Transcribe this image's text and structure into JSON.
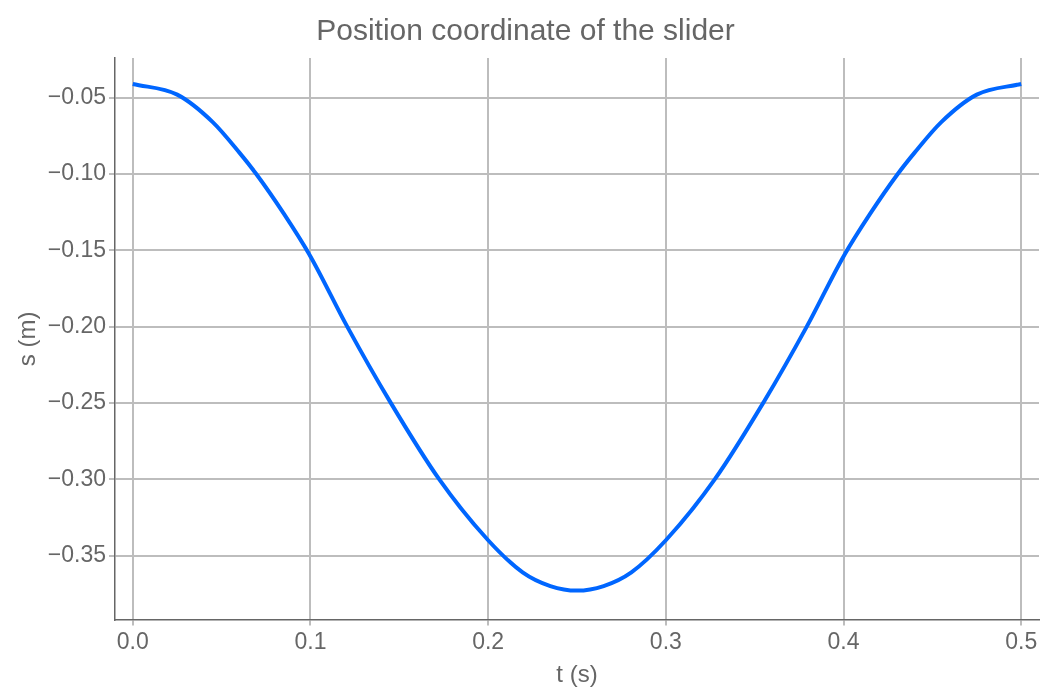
{
  "chart_data": {
    "type": "line",
    "title": "Position coordinate of the slider",
    "xlabel": "t (s)",
    "ylabel": "s (m)",
    "xlim": [
      -0.01,
      0.51
    ],
    "ylim": [
      -0.392,
      -0.024
    ],
    "xticks": [
      {
        "value": 0,
        "label": "0.0"
      },
      0.1,
      0.2,
      0.3,
      0.4,
      0.5
    ],
    "yticks": [
      {
        "value": -0.35,
        "label": "−0.35"
      },
      {
        "value": -0.3,
        "label": "−0.30"
      },
      {
        "value": -0.25,
        "label": "−0.25"
      },
      {
        "value": -0.2,
        "label": "−0.20"
      },
      {
        "value": -0.15,
        "label": "−0.15"
      },
      {
        "value": -0.1,
        "label": "−0.10"
      },
      {
        "value": -0.05,
        "label": "−0.05"
      }
    ],
    "grid": true,
    "marker": "none",
    "line_style": "solid",
    "series": [
      {
        "color": "#0066ff",
        "x": [
          0,
          0.025,
          0.045,
          0.06,
          0.0695,
          0.085,
          0.1,
          0.1207,
          0.1452,
          0.1724,
          0.2,
          0.2194,
          0.235,
          0.25,
          0.265,
          0.2806,
          0.3,
          0.3276,
          0.3548,
          0.3793,
          0.4,
          0.415,
          0.4305,
          0.44,
          0.455,
          0.475,
          0.5
        ],
        "values": [
          -0.041,
          -0.048,
          -0.066,
          -0.086,
          -0.1,
          -0.126,
          -0.154,
          -0.2,
          -0.25,
          -0.3,
          -0.34,
          -0.361,
          -0.37,
          -0.373,
          -0.37,
          -0.361,
          -0.34,
          -0.3,
          -0.25,
          -0.2,
          -0.154,
          -0.126,
          -0.1,
          -0.086,
          -0.066,
          -0.048,
          -0.041
        ]
      }
    ]
  }
}
